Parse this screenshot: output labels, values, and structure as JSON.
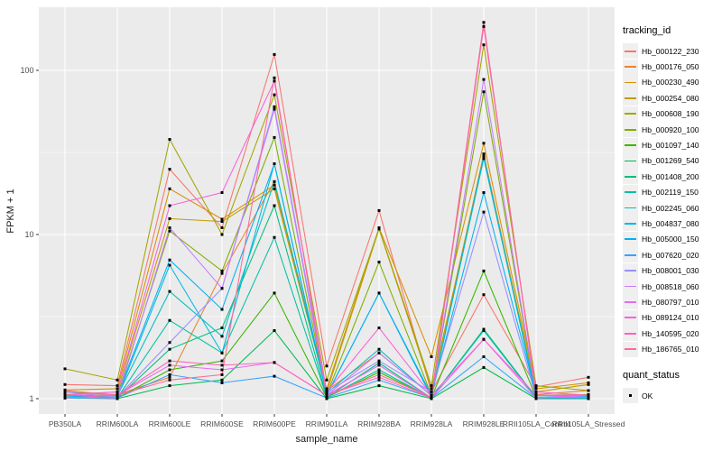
{
  "y_axis": {
    "label": "FPKM + 1",
    "tick_labels": [
      "100",
      "10",
      "1"
    ],
    "tick_values": [
      100,
      10,
      1
    ]
  },
  "x_axis": {
    "label": "sample_name"
  },
  "legend": {
    "tracking_title": "tracking_id",
    "quant_title": "quant_status",
    "quant_ok_label": "OK"
  },
  "colors": {
    "panel_background": "#EBEBEB",
    "gridline": "#FFFFFF",
    "axis_text": "#4D4D4D",
    "axis_title": "#1A1A1A",
    "point": "#000000",
    "legend_key_background": "#EFEFEF"
  },
  "chart_data": {
    "type": "line",
    "y_scale": "log10",
    "ylabel": "FPKM + 1",
    "xlabel": "sample_name",
    "ylim": [
      0.81,
      243
    ],
    "major_gridlines_y": [
      1,
      10,
      100
    ],
    "minor_gridlines_y": [
      3.1623,
      31.6228
    ],
    "grid": "on",
    "legend_position": "right",
    "point_marker": "small black square (quant_status OK)",
    "categories": [
      "PB350LA",
      "RRIM600LA",
      "RRIM600LE",
      "RRIM600SE",
      "RRIM600PE",
      "RRIM901LA",
      "RRIM928BA",
      "RRIM928LA",
      "RRIM928LE",
      "RRII105LA_Control",
      "RRII105LA_Stressed"
    ],
    "series": [
      {
        "name": "Hb_000122_230",
        "color": "#F8766D",
        "values": [
          1.22,
          1.2,
          25,
          11,
          125,
          1.58,
          14,
          1.1,
          4.3,
          1.18,
          1.35
        ]
      },
      {
        "name": "Hb_000176_050",
        "color": "#EA8331",
        "values": [
          1.1,
          1.06,
          1.35,
          5.8,
          21,
          1.12,
          1.9,
          1.05,
          31,
          1.06,
          1.12
        ]
      },
      {
        "name": "Hb_000230_490",
        "color": "#D89000",
        "values": [
          1.13,
          1.15,
          19,
          12.4,
          20,
          1.15,
          11,
          1.8,
          36,
          1.15,
          1.25
        ]
      },
      {
        "name": "Hb_000254_080",
        "color": "#C09B00",
        "values": [
          1.06,
          1.1,
          12.5,
          12.0,
          19,
          1.1,
          10.8,
          1.15,
          30,
          1.1,
          1.22
        ]
      },
      {
        "name": "Hb_000608_190",
        "color": "#A3A500",
        "values": [
          1.52,
          1.3,
          38,
          10,
          71,
          1.3,
          10.9,
          1.2,
          143,
          1.2,
          1.12
        ]
      },
      {
        "name": "Hb_000920_100",
        "color": "#7CAE00",
        "values": [
          1.1,
          1.05,
          10.5,
          6.0,
          39,
          1.06,
          6.8,
          1.05,
          74,
          1.05,
          1.06
        ]
      },
      {
        "name": "Hb_001097_140",
        "color": "#39B600",
        "values": [
          1.02,
          1.01,
          1.5,
          1.7,
          4.4,
          1.02,
          1.45,
          1.01,
          6.0,
          1.02,
          1.02
        ]
      },
      {
        "name": "Hb_001269_540",
        "color": "#00BB4E",
        "values": [
          1.01,
          1.0,
          1.2,
          1.3,
          2.6,
          1.0,
          1.2,
          1.0,
          1.55,
          1.0,
          1.0
        ]
      },
      {
        "name": "Hb_001408_200",
        "color": "#00BF7D",
        "values": [
          1.05,
          1.01,
          2.0,
          2.7,
          15,
          1.02,
          1.65,
          1.01,
          2.65,
          1.02,
          1.03
        ]
      },
      {
        "name": "Hb_002119_150",
        "color": "#00C1A3",
        "values": [
          1.02,
          1.01,
          3.0,
          1.9,
          9.6,
          1.02,
          1.5,
          1.01,
          2.6,
          1.01,
          1.05
        ]
      },
      {
        "name": "Hb_002245_060",
        "color": "#00BFC4",
        "values": [
          1.05,
          1.04,
          4.5,
          2.4,
          21,
          1.08,
          2.0,
          1.04,
          29,
          1.05,
          1.05
        ]
      },
      {
        "name": "Hb_004837_080",
        "color": "#00BADE",
        "values": [
          1.04,
          1.02,
          6.5,
          1.9,
          27,
          1.05,
          4.4,
          1.02,
          30,
          1.02,
          1.03
        ]
      },
      {
        "name": "Hb_005000_150",
        "color": "#00B0F6",
        "values": [
          1.02,
          1.05,
          7.0,
          3.5,
          27,
          1.05,
          4.4,
          1.05,
          18,
          1.05,
          1.04
        ]
      },
      {
        "name": "Hb_007620_020",
        "color": "#35A2FF",
        "values": [
          1.01,
          1.01,
          1.4,
          1.25,
          1.37,
          1.01,
          1.3,
          1.01,
          1.8,
          1.01,
          1.01
        ]
      },
      {
        "name": "Hb_008001_030",
        "color": "#9590FF",
        "values": [
          1.1,
          1.02,
          2.2,
          4.7,
          60,
          1.1,
          1.7,
          1.1,
          13.7,
          1.02,
          1.02
        ]
      },
      {
        "name": "Hb_008518_060",
        "color": "#C77CFF",
        "values": [
          1.02,
          1.01,
          11,
          4.7,
          58,
          1.05,
          1.9,
          1.05,
          88,
          1.05,
          1.02
        ]
      },
      {
        "name": "Hb_080797_010",
        "color": "#E76BF3",
        "values": [
          1.05,
          1.05,
          1.6,
          1.5,
          1.66,
          1.05,
          1.6,
          1.01,
          2.3,
          1.01,
          1.05
        ]
      },
      {
        "name": "Hb_089124_010",
        "color": "#FA62DB",
        "values": [
          1.05,
          1.1,
          15,
          18,
          86,
          1.1,
          2.7,
          1.05,
          2.3,
          1.05,
          1.05
        ]
      },
      {
        "name": "Hb_140595_020",
        "color": "#FF62BC",
        "values": [
          1.01,
          1.05,
          1.7,
          1.6,
          1.66,
          1.05,
          1.35,
          1.01,
          185,
          1.1,
          1.05
        ]
      },
      {
        "name": "Hb_186765_010",
        "color": "#FF6A98",
        "values": [
          1.12,
          1.05,
          1.3,
          1.4,
          90,
          1.05,
          1.4,
          1.02,
          196,
          1.05,
          1.05
        ]
      }
    ]
  }
}
